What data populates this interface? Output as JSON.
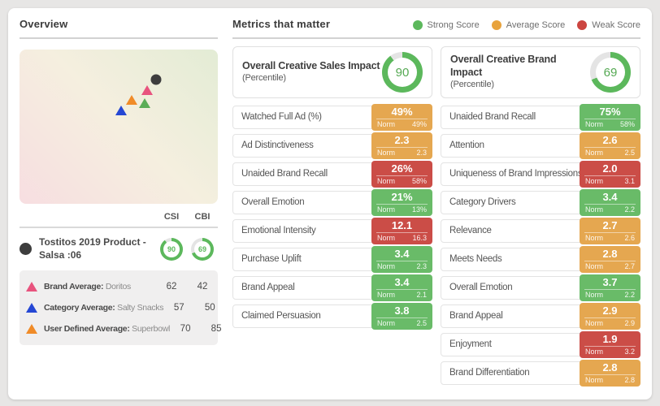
{
  "overview": {
    "title": "Overview",
    "columns": [
      "CSI",
      "CBI"
    ],
    "scatter": {
      "markers": [
        {
          "name": "product",
          "shape": "circle",
          "color": "#3d3d3d",
          "x": 68.9,
          "y": 19.5
        },
        {
          "name": "brand-average",
          "shape": "triangle",
          "color": "#e8537e",
          "x": 64.3,
          "y": 26.2
        },
        {
          "name": "user-defined-average",
          "shape": "triangle",
          "color": "#f08b28",
          "x": 56.6,
          "y": 32.5
        },
        {
          "name": "norm",
          "shape": "triangle",
          "color": "#5bad56",
          "x": 63.0,
          "y": 34.9
        },
        {
          "name": "category-average",
          "shape": "triangle",
          "color": "#2547d4",
          "x": 51.1,
          "y": 39.6
        }
      ]
    },
    "product": {
      "label": "Tostitos 2019 Product - Salsa :06",
      "csi": 90,
      "cbi": 69
    },
    "averages": [
      {
        "label": "Brand Average:",
        "value": "Doritos",
        "csi": 62,
        "cbi": 42,
        "color": "#e8537e"
      },
      {
        "label": "Category Average:",
        "value": "Salty Snacks",
        "csi": 57,
        "cbi": 50,
        "color": "#2547d4"
      },
      {
        "label": "User Defined Average:",
        "value": "Superbowl",
        "csi": 70,
        "cbi": 85,
        "color": "#f08b28"
      }
    ]
  },
  "metrics": {
    "title": "Metrics that matter",
    "norm_label": "Norm",
    "legend": [
      {
        "label": "Strong Score",
        "color": "#5cb85c"
      },
      {
        "label": "Average Score",
        "color": "#e8a33d"
      },
      {
        "label": "Weak Score",
        "color": "#cc4540"
      }
    ],
    "overall_cards": [
      {
        "title": "Overall Creative Sales Impact",
        "subtitle": "(Percentile)",
        "value": 90
      },
      {
        "title": "Overall Creative Brand Impact",
        "subtitle": "(Percentile)",
        "value": 69
      }
    ],
    "left_column": [
      {
        "label": "Watched Full Ad (%)",
        "value": "49%",
        "norm": "49%",
        "status": "average"
      },
      {
        "label": "Ad Distinctiveness",
        "value": "2.3",
        "norm": "2.3",
        "status": "average"
      },
      {
        "label": "Unaided Brand Recall",
        "value": "26%",
        "norm": "58%",
        "status": "weak"
      },
      {
        "label": "Overall Emotion",
        "value": "21%",
        "norm": "13%",
        "status": "strong"
      },
      {
        "label": "Emotional Intensity",
        "value": "12.1",
        "norm": "16.3",
        "status": "weak"
      },
      {
        "label": "Purchase Uplift",
        "value": "3.4",
        "norm": "2.3",
        "status": "strong"
      },
      {
        "label": "Brand Appeal",
        "value": "3.4",
        "norm": "2.1",
        "status": "strong"
      },
      {
        "label": "Claimed Persuasion",
        "value": "3.8",
        "norm": "2.5",
        "status": "strong"
      }
    ],
    "right_column": [
      {
        "label": "Unaided Brand Recall",
        "value": "75%",
        "norm": "58%",
        "status": "strong"
      },
      {
        "label": "Attention",
        "value": "2.6",
        "norm": "2.5",
        "status": "average"
      },
      {
        "label": "Uniqueness of Brand Impressions",
        "value": "2.0",
        "norm": "3.1",
        "status": "weak"
      },
      {
        "label": "Category Drivers",
        "value": "3.4",
        "norm": "2.2",
        "status": "strong"
      },
      {
        "label": "Relevance",
        "value": "2.7",
        "norm": "2.6",
        "status": "average"
      },
      {
        "label": "Meets Needs",
        "value": "2.8",
        "norm": "2.7",
        "status": "average"
      },
      {
        "label": "Overall Emotion",
        "value": "3.7",
        "norm": "2.2",
        "status": "strong"
      },
      {
        "label": "Brand Appeal",
        "value": "2.9",
        "norm": "2.9",
        "status": "average"
      },
      {
        "label": "Enjoyment",
        "value": "1.9",
        "norm": "3.2",
        "status": "weak"
      },
      {
        "label": "Brand Differentiation",
        "value": "2.8",
        "norm": "2.8",
        "status": "average"
      }
    ]
  },
  "colors": {
    "ring_green": "#5cb85c",
    "ring_track": "#e4e4e4",
    "status": {
      "strong": "#69bb68",
      "average": "#e5a750",
      "weak": "#cb4d47"
    }
  }
}
